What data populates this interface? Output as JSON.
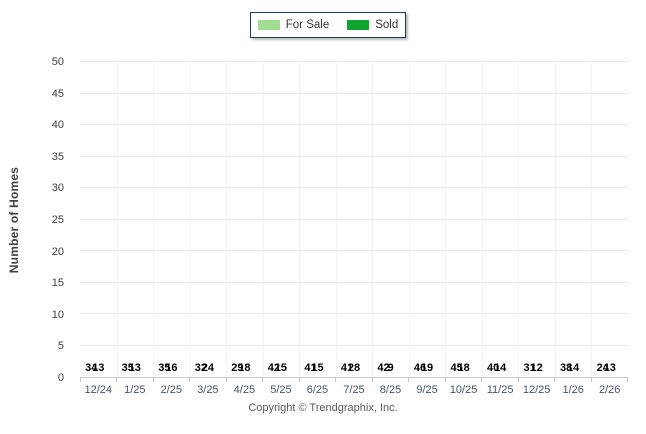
{
  "chart_data": {
    "type": "bar",
    "title": "",
    "categories": [
      "12/24",
      "1/25",
      "2/25",
      "3/25",
      "4/25",
      "5/25",
      "6/25",
      "7/25",
      "8/25",
      "9/25",
      "10/25",
      "11/25",
      "12/25",
      "1/26",
      "2/26"
    ],
    "series": [
      {
        "name": "For Sale",
        "color": "#A0DC91",
        "values": [
          34,
          35,
          35,
          32,
          29,
          42,
          41,
          41,
          42,
          46,
          45,
          40,
          31,
          38,
          24
        ]
      },
      {
        "name": "Sold",
        "color": "#0FA32F",
        "values": [
          13,
          13,
          16,
          24,
          18,
          15,
          15,
          28,
          9,
          19,
          18,
          14,
          12,
          14,
          13
        ]
      }
    ],
    "xlabel": "",
    "ylabel": "Number of Homes",
    "ylim": [
      0,
      50
    ],
    "ytick_step": 5,
    "grid": true,
    "legend_position": "top-center",
    "value_labels": {
      "for_sale": "above bars",
      "sold": "inside bar bottom"
    }
  },
  "footer": {
    "copyright": "Copyright © Trendgraphix, Inc."
  },
  "colors": {
    "for_sale": "#A0DC91",
    "sold": "#0FA32F",
    "legend_border": "#1F3864",
    "gridline": "#E8E8E8",
    "axis_line": "#C9C9C9",
    "y_tick_text": "#404040",
    "x_tick_text": "#44546A",
    "value_text": "#000000",
    "copyright_text": "#595959"
  }
}
